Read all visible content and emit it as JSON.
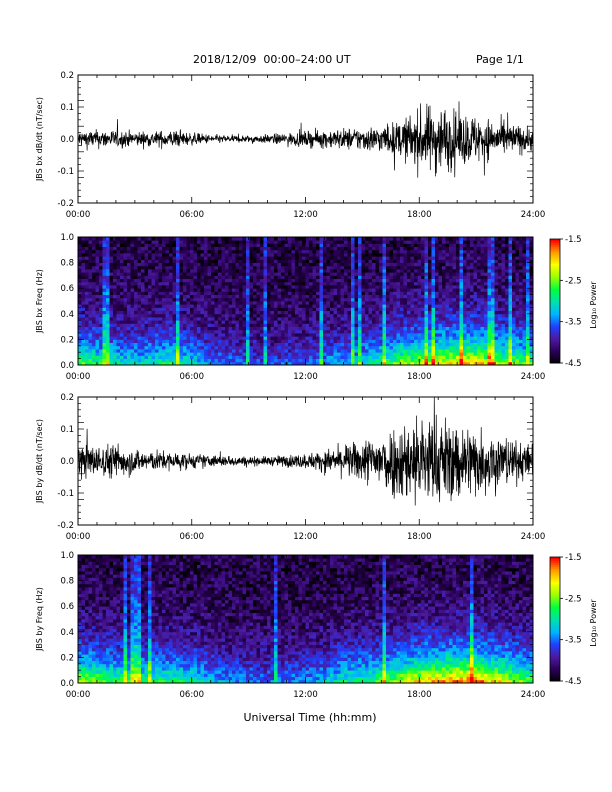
{
  "header": {
    "title": "2018/12/09  00:00–24:00 UT",
    "page": "Page 1/1"
  },
  "xaxis_title": "Universal Time (hh:mm)",
  "time_ticks": [
    "00:00",
    "06:00",
    "12:00",
    "18:00",
    "24:00"
  ],
  "colorbar": {
    "ticks": [
      "-1.5",
      "-2.5",
      "-3.5",
      "-4.5"
    ],
    "label": "Log₁₀ Power",
    "range": [
      -4.5,
      -1.5
    ],
    "colormap": [
      "#000000",
      "#2a0055",
      "#4a1aa0",
      "#1e40ff",
      "#00b4ff",
      "#00e0b0",
      "#00ff40",
      "#9cff00",
      "#ffff00",
      "#ff9a00",
      "#ff0000"
    ]
  },
  "chart_data": [
    {
      "type": "line",
      "title": "JBS bx dB/dt (nT/sec)",
      "ylabel": "JBS bx dB/dt (nT/sec)",
      "xlim": [
        0,
        24
      ],
      "ylim": [
        -0.2,
        0.2
      ],
      "yticks": [
        "0.2",
        "0.1",
        "0.0",
        "-0.1",
        "-0.2"
      ],
      "xticks": [
        "00:00",
        "06:00",
        "12:00",
        "18:00",
        "24:00"
      ],
      "grid": false,
      "color": "#000000",
      "envelope": {
        "hours": [
          0,
          1,
          2,
          3,
          4,
          5,
          6,
          7,
          8,
          9,
          10,
          11,
          12,
          13,
          14,
          15,
          16,
          17,
          18,
          19,
          20,
          21,
          22,
          23,
          24
        ],
        "amplitude": [
          0.03,
          0.03,
          0.03,
          0.025,
          0.025,
          0.03,
          0.02,
          0.015,
          0.012,
          0.012,
          0.015,
          0.02,
          0.025,
          0.03,
          0.035,
          0.04,
          0.045,
          0.06,
          0.1,
          0.12,
          0.09,
          0.08,
          0.06,
          0.05,
          0.04
        ]
      }
    },
    {
      "type": "heatmap",
      "title": "JBS bx Freq (Hz)",
      "ylabel": "JBS bx Freq (Hz)",
      "xlim": [
        0,
        24
      ],
      "ylim": [
        0,
        1.0
      ],
      "yticks": [
        "1.0",
        "0.8",
        "0.6",
        "0.4",
        "0.2",
        "0.0"
      ],
      "xticks": [
        "00:00",
        "06:00",
        "12:00",
        "18:00",
        "24:00"
      ],
      "colorbar_label": "Log₁₀ Power",
      "value_range": [
        -4.5,
        -1.5
      ],
      "activity": {
        "hours": [
          0,
          1,
          2,
          3,
          4,
          5,
          6,
          7,
          8,
          9,
          10,
          11,
          12,
          13,
          14,
          15,
          16,
          17,
          18,
          19,
          20,
          21,
          22,
          23,
          24
        ],
        "level": [
          0.55,
          0.5,
          0.45,
          0.4,
          0.45,
          0.5,
          0.4,
          0.3,
          0.25,
          0.22,
          0.2,
          0.22,
          0.25,
          0.3,
          0.35,
          0.4,
          0.5,
          0.6,
          0.65,
          0.7,
          0.75,
          0.8,
          0.65,
          0.6,
          0.5
        ]
      }
    },
    {
      "type": "line",
      "title": "JBS by dB/dt (nT/sec)",
      "ylabel": "JBS by dB/dt (nT/sec)",
      "xlim": [
        0,
        24
      ],
      "ylim": [
        -0.2,
        0.2
      ],
      "yticks": [
        "0.2",
        "0.1",
        "0.0",
        "-0.1",
        "-0.2"
      ],
      "xticks": [
        "00:00",
        "06:00",
        "12:00",
        "18:00",
        "24:00"
      ],
      "grid": false,
      "color": "#000000",
      "envelope": {
        "hours": [
          0,
          1,
          2,
          3,
          4,
          5,
          6,
          7,
          8,
          9,
          10,
          11,
          12,
          13,
          14,
          15,
          16,
          17,
          18,
          19,
          20,
          21,
          22,
          23,
          24
        ],
        "amplitude": [
          0.06,
          0.05,
          0.06,
          0.04,
          0.035,
          0.03,
          0.025,
          0.02,
          0.018,
          0.015,
          0.015,
          0.02,
          0.025,
          0.035,
          0.05,
          0.07,
          0.1,
          0.13,
          0.16,
          0.15,
          0.13,
          0.12,
          0.1,
          0.07,
          0.05
        ]
      }
    },
    {
      "type": "heatmap",
      "title": "JBS by Freq (Hz)",
      "ylabel": "JBS by Freq (Hz)",
      "xlim": [
        0,
        24
      ],
      "ylim": [
        0,
        1.0
      ],
      "yticks": [
        "1.0",
        "0.8",
        "0.6",
        "0.4",
        "0.2",
        "0.0"
      ],
      "xticks": [
        "00:00",
        "06:00",
        "12:00",
        "18:00",
        "24:00"
      ],
      "colorbar_label": "Log₁₀ Power",
      "value_range": [
        -4.5,
        -1.5
      ],
      "activity": {
        "hours": [
          0,
          1,
          2,
          3,
          4,
          5,
          6,
          7,
          8,
          9,
          10,
          11,
          12,
          13,
          14,
          15,
          16,
          17,
          18,
          19,
          20,
          21,
          22,
          23,
          24
        ],
        "level": [
          0.65,
          0.6,
          0.55,
          0.5,
          0.5,
          0.5,
          0.45,
          0.35,
          0.3,
          0.28,
          0.25,
          0.28,
          0.3,
          0.35,
          0.45,
          0.5,
          0.55,
          0.65,
          0.75,
          0.8,
          0.85,
          0.85,
          0.75,
          0.65,
          0.55
        ]
      }
    }
  ]
}
